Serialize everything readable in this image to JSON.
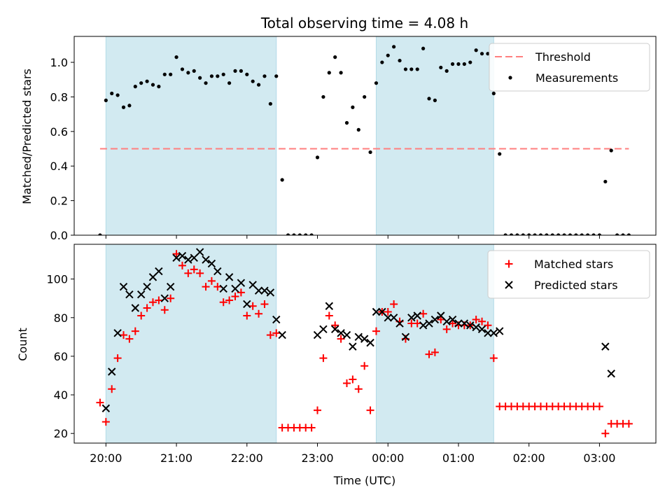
{
  "chart_data": [
    {
      "type": "scatter",
      "title": "Total observing time = 4.08 h",
      "xlabel": "",
      "ylabel": "Matched/Predicted stars",
      "xlim": [
        "19:33",
        "03:48"
      ],
      "ylim": [
        0,
        1.15
      ],
      "yticks": [
        "0.0",
        "0.2",
        "0.4",
        "0.6",
        "0.8",
        "1.0"
      ],
      "shaded_intervals": [
        [
          "20:00",
          "22:25"
        ],
        [
          "23:50",
          "01:30"
        ]
      ],
      "shade_color": "#add8e6",
      "threshold": {
        "name": "Threshold",
        "value": 0.5,
        "x_range": [
          "19:55",
          "03:25"
        ],
        "color": "#ff7f7f"
      },
      "series": [
        {
          "name": "Measurements",
          "color": "#000000",
          "marker": "dot",
          "points": [
            [
              "19:55",
              0.0
            ],
            [
              "20:00",
              0.78
            ],
            [
              "20:05",
              0.82
            ],
            [
              "20:10",
              0.81
            ],
            [
              "20:15",
              0.74
            ],
            [
              "20:20",
              0.75
            ],
            [
              "20:25",
              0.86
            ],
            [
              "20:30",
              0.88
            ],
            [
              "20:35",
              0.89
            ],
            [
              "20:40",
              0.87
            ],
            [
              "20:45",
              0.86
            ],
            [
              "20:50",
              0.93
            ],
            [
              "20:55",
              0.93
            ],
            [
              "21:00",
              1.03
            ],
            [
              "21:05",
              0.96
            ],
            [
              "21:10",
              0.94
            ],
            [
              "21:15",
              0.95
            ],
            [
              "21:20",
              0.91
            ],
            [
              "21:25",
              0.88
            ],
            [
              "21:30",
              0.92
            ],
            [
              "21:35",
              0.92
            ],
            [
              "21:40",
              0.93
            ],
            [
              "21:45",
              0.88
            ],
            [
              "21:50",
              0.95
            ],
            [
              "21:55",
              0.95
            ],
            [
              "22:00",
              0.93
            ],
            [
              "22:05",
              0.89
            ],
            [
              "22:10",
              0.87
            ],
            [
              "22:15",
              0.92
            ],
            [
              "22:20",
              0.76
            ],
            [
              "22:25",
              0.92
            ],
            [
              "22:30",
              0.32
            ],
            [
              "22:35",
              0.0
            ],
            [
              "22:40",
              0.0
            ],
            [
              "22:45",
              0.0
            ],
            [
              "22:50",
              0.0
            ],
            [
              "22:55",
              0.0
            ],
            [
              "23:00",
              0.45
            ],
            [
              "23:05",
              0.8
            ],
            [
              "23:10",
              0.94
            ],
            [
              "23:15",
              1.03
            ],
            [
              "23:20",
              0.94
            ],
            [
              "23:25",
              0.65
            ],
            [
              "23:30",
              0.74
            ],
            [
              "23:35",
              0.61
            ],
            [
              "23:40",
              0.8
            ],
            [
              "23:45",
              0.48
            ],
            [
              "23:50",
              0.88
            ],
            [
              "23:55",
              1.0
            ],
            [
              "00:00",
              1.04
            ],
            [
              "00:05",
              1.09
            ],
            [
              "00:10",
              1.01
            ],
            [
              "00:15",
              0.96
            ],
            [
              "00:20",
              0.96
            ],
            [
              "00:25",
              0.96
            ],
            [
              "00:30",
              1.08
            ],
            [
              "00:35",
              0.79
            ],
            [
              "00:40",
              0.78
            ],
            [
              "00:45",
              0.97
            ],
            [
              "00:50",
              0.95
            ],
            [
              "00:55",
              0.99
            ],
            [
              "01:00",
              0.99
            ],
            [
              "01:05",
              0.99
            ],
            [
              "01:10",
              1.0
            ],
            [
              "01:15",
              1.07
            ],
            [
              "01:20",
              1.05
            ],
            [
              "01:25",
              1.05
            ],
            [
              "01:30",
              0.82
            ],
            [
              "01:35",
              0.47
            ],
            [
              "01:40",
              0.0
            ],
            [
              "01:45",
              0.0
            ],
            [
              "01:50",
              0.0
            ],
            [
              "01:55",
              0.0
            ],
            [
              "02:00",
              0.0
            ],
            [
              "02:05",
              0.0
            ],
            [
              "02:10",
              0.0
            ],
            [
              "02:15",
              0.0
            ],
            [
              "02:20",
              0.0
            ],
            [
              "02:25",
              0.0
            ],
            [
              "02:30",
              0.0
            ],
            [
              "02:35",
              0.0
            ],
            [
              "02:40",
              0.0
            ],
            [
              "02:45",
              0.0
            ],
            [
              "02:50",
              0.0
            ],
            [
              "02:55",
              0.0
            ],
            [
              "03:00",
              0.0
            ],
            [
              "03:05",
              0.31
            ],
            [
              "03:10",
              0.49
            ],
            [
              "03:15",
              0.0
            ],
            [
              "03:20",
              0.0
            ],
            [
              "03:25",
              0.0
            ]
          ]
        }
      ],
      "legend": {
        "position": "top-right",
        "entries": [
          "Threshold",
          "Measurements"
        ]
      }
    },
    {
      "type": "scatter",
      "title": "",
      "xlabel": "Time (UTC)",
      "ylabel": "Count",
      "xlim": [
        "19:33",
        "03:48"
      ],
      "ylim": [
        15,
        118
      ],
      "xticks": [
        "20:00",
        "21:00",
        "22:00",
        "23:00",
        "00:00",
        "01:00",
        "02:00",
        "03:00"
      ],
      "yticks": [
        "20",
        "40",
        "60",
        "80",
        "100"
      ],
      "shaded_intervals": [
        [
          "20:00",
          "22:25"
        ],
        [
          "23:50",
          "01:30"
        ]
      ],
      "shade_color": "#add8e6",
      "series": [
        {
          "name": "Matched stars",
          "color": "#ff0000",
          "marker": "plus",
          "points": [
            [
              "19:55",
              36
            ],
            [
              "20:00",
              26
            ],
            [
              "20:05",
              43
            ],
            [
              "20:10",
              59
            ],
            [
              "20:15",
              71
            ],
            [
              "20:20",
              69
            ],
            [
              "20:25",
              73
            ],
            [
              "20:30",
              81
            ],
            [
              "20:35",
              85
            ],
            [
              "20:40",
              88
            ],
            [
              "20:45",
              89
            ],
            [
              "20:50",
              84
            ],
            [
              "20:55",
              90
            ],
            [
              "21:00",
              113
            ],
            [
              "21:05",
              107
            ],
            [
              "21:10",
              103
            ],
            [
              "21:15",
              105
            ],
            [
              "21:20",
              103
            ],
            [
              "21:25",
              96
            ],
            [
              "21:30",
              99
            ],
            [
              "21:35",
              96
            ],
            [
              "21:40",
              88
            ],
            [
              "21:45",
              89
            ],
            [
              "21:50",
              91
            ],
            [
              "21:55",
              93
            ],
            [
              "22:00",
              81
            ],
            [
              "22:05",
              86
            ],
            [
              "22:10",
              82
            ],
            [
              "22:15",
              87
            ],
            [
              "22:20",
              71
            ],
            [
              "22:25",
              72
            ],
            [
              "22:30",
              23
            ],
            [
              "22:35",
              23
            ],
            [
              "22:40",
              23
            ],
            [
              "22:45",
              23
            ],
            [
              "22:50",
              23
            ],
            [
              "22:55",
              23
            ],
            [
              "23:00",
              32
            ],
            [
              "23:05",
              59
            ],
            [
              "23:10",
              81
            ],
            [
              "23:15",
              76
            ],
            [
              "23:20",
              69
            ],
            [
              "23:25",
              46
            ],
            [
              "23:30",
              48
            ],
            [
              "23:35",
              43
            ],
            [
              "23:40",
              55
            ],
            [
              "23:45",
              32
            ],
            [
              "23:50",
              73
            ],
            [
              "23:55",
              83
            ],
            [
              "00:00",
              83
            ],
            [
              "00:05",
              87
            ],
            [
              "00:10",
              78
            ],
            [
              "00:15",
              69
            ],
            [
              "00:20",
              77
            ],
            [
              "00:25",
              77
            ],
            [
              "00:30",
              82
            ],
            [
              "00:35",
              61
            ],
            [
              "00:40",
              62
            ],
            [
              "00:45",
              79
            ],
            [
              "00:50",
              74
            ],
            [
              "00:55",
              77
            ],
            [
              "01:00",
              76
            ],
            [
              "01:05",
              76
            ],
            [
              "01:10",
              76
            ],
            [
              "01:15",
              79
            ],
            [
              "01:20",
              78
            ],
            [
              "01:25",
              76
            ],
            [
              "01:30",
              59
            ],
            [
              "01:35",
              34
            ],
            [
              "01:40",
              34
            ],
            [
              "01:45",
              34
            ],
            [
              "01:50",
              34
            ],
            [
              "01:55",
              34
            ],
            [
              "02:00",
              34
            ],
            [
              "02:05",
              34
            ],
            [
              "02:10",
              34
            ],
            [
              "02:15",
              34
            ],
            [
              "02:20",
              34
            ],
            [
              "02:25",
              34
            ],
            [
              "02:30",
              34
            ],
            [
              "02:35",
              34
            ],
            [
              "02:40",
              34
            ],
            [
              "02:45",
              34
            ],
            [
              "02:50",
              34
            ],
            [
              "02:55",
              34
            ],
            [
              "03:00",
              34
            ],
            [
              "03:05",
              20
            ],
            [
              "03:10",
              25
            ],
            [
              "03:15",
              25
            ],
            [
              "03:20",
              25
            ],
            [
              "03:25",
              25
            ]
          ]
        },
        {
          "name": "Predicted stars",
          "color": "#000000",
          "marker": "x",
          "points": [
            [
              "20:00",
              33
            ],
            [
              "20:05",
              52
            ],
            [
              "20:10",
              72
            ],
            [
              "20:15",
              96
            ],
            [
              "20:20",
              92
            ],
            [
              "20:25",
              85
            ],
            [
              "20:30",
              92
            ],
            [
              "20:35",
              96
            ],
            [
              "20:40",
              101
            ],
            [
              "20:45",
              104
            ],
            [
              "20:50",
              90
            ],
            [
              "20:55",
              96
            ],
            [
              "21:00",
              111
            ],
            [
              "21:05",
              112
            ],
            [
              "21:10",
              110
            ],
            [
              "21:15",
              111
            ],
            [
              "21:20",
              114
            ],
            [
              "21:25",
              110
            ],
            [
              "21:30",
              108
            ],
            [
              "21:35",
              104
            ],
            [
              "21:40",
              95
            ],
            [
              "21:45",
              101
            ],
            [
              "21:50",
              95
            ],
            [
              "21:55",
              98
            ],
            [
              "22:00",
              87
            ],
            [
              "22:05",
              97
            ],
            [
              "22:10",
              94
            ],
            [
              "22:15",
              94
            ],
            [
              "22:20",
              93
            ],
            [
              "22:25",
              79
            ],
            [
              "22:30",
              71
            ],
            [
              "23:00",
              71
            ],
            [
              "23:05",
              74
            ],
            [
              "23:10",
              86
            ],
            [
              "23:15",
              74
            ],
            [
              "23:20",
              72
            ],
            [
              "23:25",
              71
            ],
            [
              "23:30",
              65
            ],
            [
              "23:35",
              70
            ],
            [
              "23:40",
              69
            ],
            [
              "23:45",
              67
            ],
            [
              "23:50",
              83
            ],
            [
              "23:55",
              83
            ],
            [
              "00:00",
              80
            ],
            [
              "00:05",
              80
            ],
            [
              "00:10",
              77
            ],
            [
              "00:15",
              70
            ],
            [
              "00:20",
              80
            ],
            [
              "00:25",
              81
            ],
            [
              "00:30",
              76
            ],
            [
              "00:35",
              77
            ],
            [
              "00:40",
              79
            ],
            [
              "00:45",
              81
            ],
            [
              "00:50",
              78
            ],
            [
              "00:55",
              79
            ],
            [
              "01:00",
              77
            ],
            [
              "01:05",
              77
            ],
            [
              "01:10",
              76
            ],
            [
              "01:15",
              75
            ],
            [
              "01:20",
              74
            ],
            [
              "01:25",
              72
            ],
            [
              "01:30",
              72
            ],
            [
              "01:35",
              73
            ],
            [
              "03:05",
              65
            ],
            [
              "03:10",
              51
            ]
          ]
        }
      ],
      "legend": {
        "position": "top-right",
        "entries": [
          "Matched stars",
          "Predicted stars"
        ]
      }
    }
  ]
}
